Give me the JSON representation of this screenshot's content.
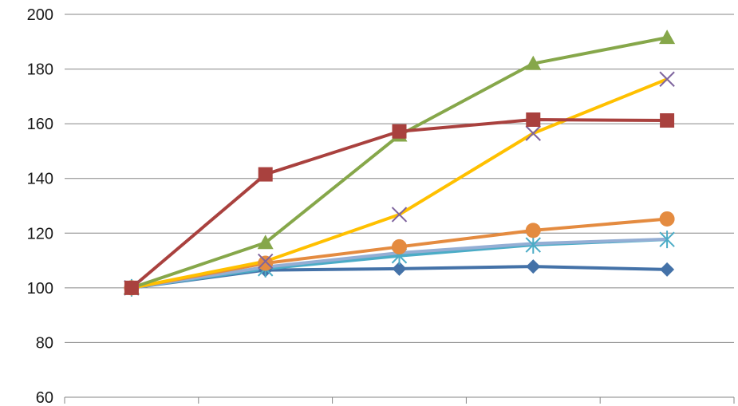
{
  "chart_data": {
    "type": "line",
    "title": "",
    "xlabel": "",
    "ylabel": "",
    "x": [
      1,
      2,
      3,
      4,
      5
    ],
    "ylim": [
      60,
      200
    ],
    "yticks": [
      60,
      80,
      100,
      120,
      140,
      160,
      180,
      200
    ],
    "grid": true,
    "legend": "none",
    "series": [
      {
        "color": "#4472a8",
        "marker": "diamond",
        "values": [
          100,
          106.5,
          107,
          107.8,
          106.7
        ]
      },
      {
        "color": "#a9413e",
        "marker": "square",
        "values": [
          100,
          141.5,
          157.2,
          161.5,
          161.2
        ]
      },
      {
        "color": "#86a74a",
        "marker": "triangle",
        "values": [
          100,
          116.5,
          155.8,
          182,
          191.5
        ]
      },
      {
        "color": "#ffc000",
        "marker": "x",
        "values": [
          100,
          109.7,
          126.8,
          156.5,
          176.3
        ]
      },
      {
        "color": "#4bacc6",
        "marker": "star",
        "values": [
          100,
          107,
          111.7,
          115.7,
          117.7
        ]
      },
      {
        "color": "#e48b40",
        "marker": "circle",
        "values": [
          100,
          109,
          115,
          121,
          125.2
        ]
      },
      {
        "color": "#94aed4",
        "marker": "none",
        "values": [
          100,
          107.6,
          112.8,
          116.2,
          117.8
        ]
      }
    ]
  }
}
